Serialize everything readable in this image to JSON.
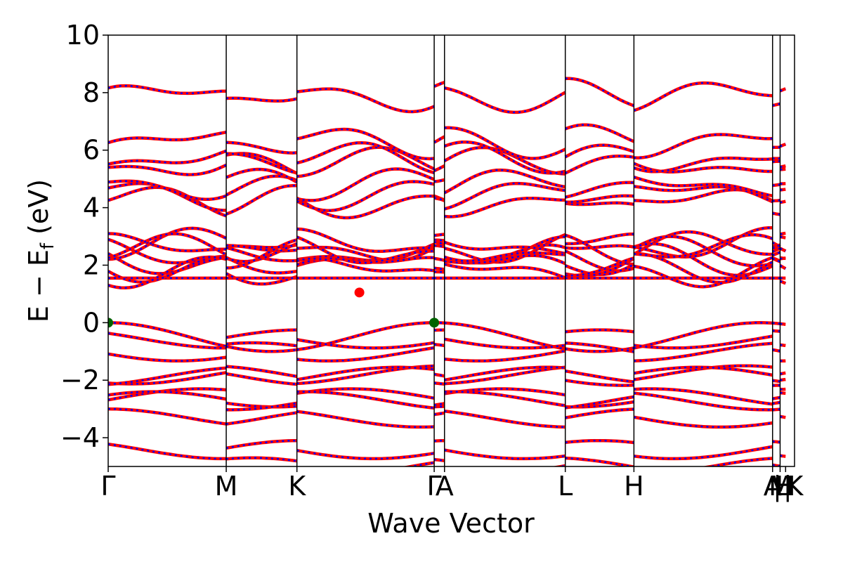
{
  "chart_data": {
    "type": "line",
    "title": "",
    "xlabel": "Wave Vector",
    "ylabel": "E − E_f (eV)",
    "ylabel_main": "E − E",
    "ylabel_sub": "f",
    "ylabel_unit": " (eV)",
    "ylim": [
      -5,
      10
    ],
    "yticks": [
      -4,
      -2,
      0,
      2,
      4,
      6,
      8,
      10
    ],
    "ytick_labels": [
      "−4",
      "−2",
      "0",
      "2",
      "4",
      "6",
      "8",
      "10"
    ],
    "kpath_positions": [
      0,
      0.172,
      0.275,
      0.475,
      0.49,
      0.666,
      0.766,
      0.968,
      0.979,
      0.987
    ],
    "xtick_labels": [
      "Γ",
      "M",
      "K",
      "Γ",
      "A",
      "L",
      "H",
      "A",
      "M",
      "H"
    ],
    "xtick_label_overlaps": [
      "|",
      "L",
      "|",
      "K"
    ],
    "grid": false,
    "series": [
      {
        "color": "#ff0000",
        "style": "solid"
      },
      {
        "color": "#0000ff",
        "style": "dotted"
      }
    ],
    "markers": [
      {
        "label_note": "VBM",
        "k": 0.0,
        "e": 0.0,
        "color": "#006400"
      },
      {
        "label_note": "VBM",
        "k": 0.475,
        "e": 0.0,
        "color": "#006400"
      },
      {
        "label_note": "CBM",
        "k": 0.366,
        "e": 1.05,
        "color": "#ff0000"
      }
    ],
    "band_anchor_energies": {
      "conduction": [
        1.55,
        2.6,
        2.4,
        2.2,
        2.0,
        1.8,
        2.7,
        2.5,
        4.2,
        4.5,
        4.8,
        5.5,
        5.7,
        6.3,
        7.9
      ],
      "valence": [
        0.0,
        -0.25,
        -0.7,
        -1.5,
        -1.55,
        -2.3,
        -2.4,
        -3.0,
        -4.1,
        -4.7
      ]
    }
  }
}
